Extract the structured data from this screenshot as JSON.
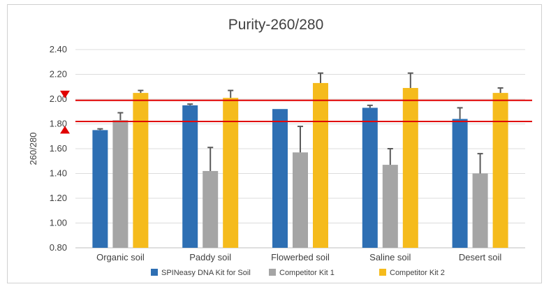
{
  "chart_data": {
    "type": "bar",
    "title": "Purity-260/280",
    "ylabel": "260/280",
    "xlabel": "",
    "ylim": [
      0.8,
      2.4
    ],
    "yticks": [
      "0.80",
      "1.00",
      "1.20",
      "1.40",
      "1.60",
      "1.80",
      "2.00",
      "2.20",
      "2.40"
    ],
    "grid": true,
    "legend_position": "bottom",
    "categories": [
      "Organic soil",
      "Paddy soil",
      "Flowerbed soil",
      "Saline soil",
      "Desert soil"
    ],
    "series": [
      {
        "name": "SPINeasy DNA Kit for Soil",
        "color": "#2e6fb3",
        "values": [
          1.75,
          1.95,
          1.92,
          1.93,
          1.84
        ],
        "errors": [
          0.01,
          0.01,
          0.0,
          0.02,
          0.09
        ]
      },
      {
        "name": "Competitor Kit 1",
        "color": "#a5a5a5",
        "values": [
          1.83,
          1.42,
          1.57,
          1.47,
          1.4
        ],
        "errors": [
          0.06,
          0.19,
          0.21,
          0.13,
          0.16
        ]
      },
      {
        "name": "Competitor Kit 2",
        "color": "#f5bb1c",
        "values": [
          2.05,
          2.01,
          2.13,
          2.09,
          2.05
        ],
        "errors": [
          0.02,
          0.06,
          0.08,
          0.12,
          0.04
        ]
      }
    ],
    "reference_lines": [
      {
        "value": 1.99,
        "color": "#e00000"
      },
      {
        "value": 1.82,
        "color": "#e00000"
      }
    ],
    "markers": [
      {
        "shape": "triangle-down",
        "value": 2.04,
        "color": "#e00000"
      },
      {
        "shape": "triangle-up",
        "value": 1.75,
        "color": "#e00000"
      }
    ]
  }
}
